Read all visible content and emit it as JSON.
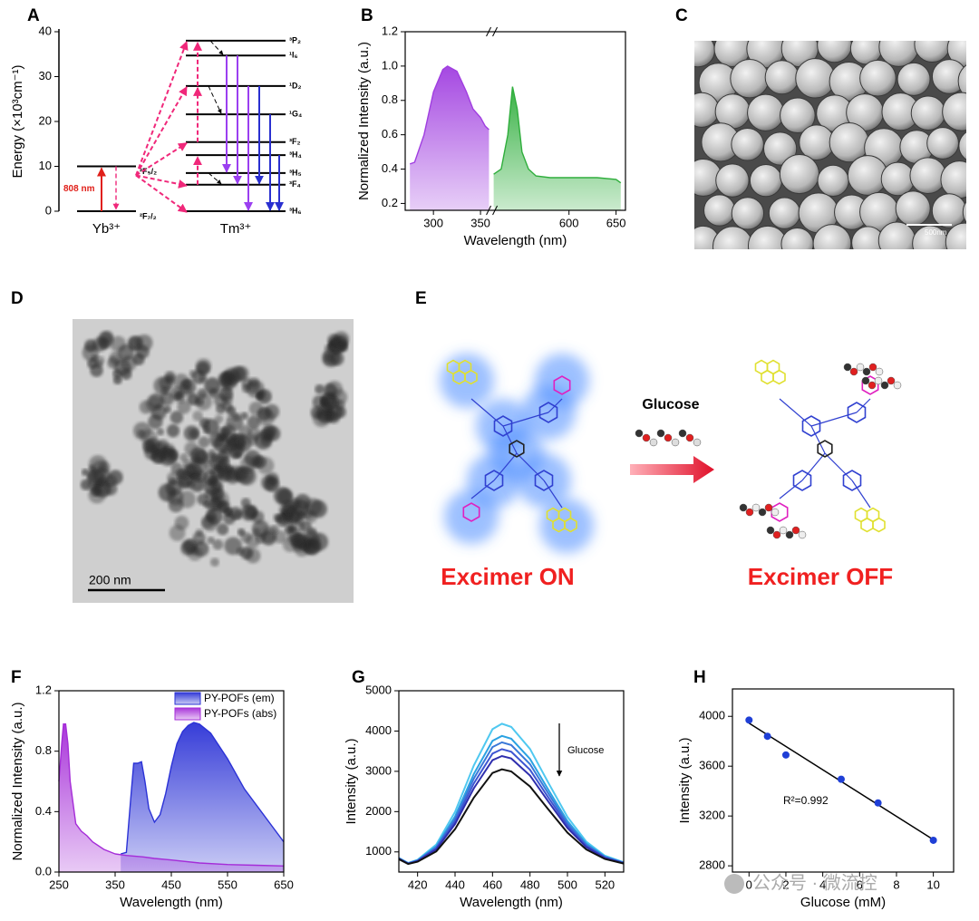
{
  "chart_data": [
    {
      "type": "energy-levels",
      "panel": "A",
      "ylabel": "Energy (×10³cm⁻¹)",
      "ylim": [
        0,
        40
      ],
      "yticks": [
        0,
        10,
        20,
        30,
        40
      ],
      "annotation": "808 nm",
      "groups": [
        {
          "name": "Yb³⁺",
          "levels": [
            {
              "label": "²F₇/₂",
              "energy": 0
            },
            {
              "label": "²F₅/₂",
              "energy": 10
            }
          ]
        },
        {
          "name": "Tm³⁺",
          "levels": [
            {
              "label": "³H₆",
              "energy": 0
            },
            {
              "label": "³F₄",
              "energy": 5.9
            },
            {
              "label": "³H₅",
              "energy": 8.5
            },
            {
              "label": "³H₄",
              "energy": 12.5
            },
            {
              "label": "³F₂",
              "energy": 15.4
            },
            {
              "label": "¹G₄",
              "energy": 21.6
            },
            {
              "label": "¹D₂",
              "energy": 27.9
            },
            {
              "label": "¹I₆",
              "energy": 34.7
            },
            {
              "label": "³P₂",
              "energy": 38
            }
          ]
        }
      ]
    },
    {
      "type": "area",
      "panel": "B",
      "ylabel": "Normalized Intensity (a.u.)",
      "xlabel": "Wavelength (nm)",
      "xlim": [
        270,
        660
      ],
      "xbreak": [
        362,
        518
      ],
      "xticks": [
        300,
        350,
        600,
        650
      ],
      "ylim": [
        0.16,
        1.2
      ],
      "yticks": [
        0.2,
        0.4,
        0.6,
        0.8,
        {
          "value": 1,
          "label": "1.0"
        },
        1.2
      ],
      "series": [
        {
          "color": "#a03ee0",
          "x": [
            275,
            280,
            290,
            300,
            310,
            315,
            325,
            335,
            342,
            350,
            355,
            359
          ],
          "values": [
            0.43,
            0.44,
            0.6,
            0.85,
            0.98,
            1.0,
            0.97,
            0.85,
            0.75,
            0.7,
            0.65,
            0.63
          ]
        },
        {
          "color": "#2fae3c",
          "x": [
            520,
            528,
            535,
            540,
            545,
            550,
            557,
            565,
            580,
            600,
            630,
            650,
            655
          ],
          "values": [
            0.37,
            0.4,
            0.6,
            0.88,
            0.75,
            0.5,
            0.4,
            0.36,
            0.35,
            0.35,
            0.35,
            0.34,
            0.32
          ]
        }
      ]
    },
    {
      "type": "area",
      "panel": "F",
      "ylabel": "Normalized Intensity (a.u.)",
      "xlabel": "Wavelength (nm)",
      "legend": "upper right",
      "xlim": [
        250,
        650
      ],
      "xticks": [
        250,
        350,
        450,
        550,
        650
      ],
      "ylim": [
        0,
        1.2
      ],
      "yticks": [
        {
          "value": 0,
          "label": "0.0"
        },
        0.4,
        0.8,
        1.2
      ],
      "series": [
        {
          "name": "PY-POFs (em)",
          "color": "#2b32d6",
          "x": [
            360,
            370,
            378,
            383,
            390,
            397,
            403,
            410,
            420,
            430,
            440,
            450,
            460,
            470,
            480,
            490,
            500,
            520,
            550,
            580,
            610,
            630,
            650
          ],
          "values": [
            0.12,
            0.13,
            0.5,
            0.72,
            0.72,
            0.73,
            0.6,
            0.42,
            0.33,
            0.38,
            0.52,
            0.7,
            0.85,
            0.93,
            0.97,
            0.99,
            0.98,
            0.92,
            0.75,
            0.55,
            0.4,
            0.3,
            0.2
          ]
        },
        {
          "name": "PY-POFs (abs)",
          "color": "#a52cd8",
          "x": [
            250,
            255,
            258,
            262,
            266,
            270,
            280,
            290,
            300,
            310,
            330,
            350,
            370,
            400,
            420,
            450,
            500,
            550,
            600,
            650
          ],
          "values": [
            0.6,
            0.85,
            0.98,
            0.98,
            0.85,
            0.6,
            0.32,
            0.27,
            0.24,
            0.2,
            0.15,
            0.12,
            0.11,
            0.1,
            0.09,
            0.08,
            0.06,
            0.05,
            0.045,
            0.04
          ]
        }
      ]
    },
    {
      "type": "line",
      "panel": "G",
      "ylabel": "Intensity (a.u.)",
      "xlabel": "Wavelength (nm)",
      "annotation": "Glucose",
      "xlim": [
        410,
        530
      ],
      "xticks": [
        420,
        440,
        460,
        480,
        500,
        520
      ],
      "ylim": [
        500,
        5000
      ],
      "yticks": [
        1000,
        2000,
        3000,
        4000,
        5000
      ],
      "x": [
        410,
        415,
        420,
        430,
        440,
        450,
        460,
        465,
        470,
        480,
        490,
        500,
        510,
        520,
        530
      ],
      "series": [
        {
          "color": "#4fc8f0",
          "values": [
            850,
            724,
            805,
            1183,
            1995,
            3146,
            4046,
            4180,
            4102,
            3555,
            2701,
            1868,
            1257,
            904,
            742
          ]
        },
        {
          "color": "#2aa2e2",
          "values": [
            845,
            718,
            792,
            1138,
            1881,
            2934,
            3757,
            3880,
            3809,
            3308,
            2527,
            1764,
            1206,
            883,
            734
          ]
        },
        {
          "color": "#3a78d8",
          "values": [
            840,
            714,
            785,
            1114,
            1820,
            2820,
            3603,
            3720,
            3652,
            3177,
            2434,
            1709,
            1178,
            871,
            730
          ]
        },
        {
          "color": "#3d55d2",
          "values": [
            835,
            711,
            778,
            1088,
            1755,
            2700,
            3440,
            3550,
            3486,
            3037,
            2335,
            1651,
            1149,
            859,
            725
          ]
        },
        {
          "color": "#2f2fae",
          "values": [
            830,
            707,
            770,
            1062,
            1690,
            2580,
            3276,
            3380,
            3320,
            2897,
            2236,
            1592,
            1120,
            847,
            721
          ]
        },
        {
          "color": "#111111",
          "values": [
            820,
            700,
            756,
            1012,
            1564,
            2347,
            2959,
            3050,
            2997,
            2625,
            2044,
            1478,
            1063,
            823,
            712
          ]
        }
      ]
    },
    {
      "type": "scatter",
      "panel": "H",
      "ylabel": "Intensity (a.u.)",
      "xlabel": "Glucose (mM)",
      "annotation": "R²=0.992",
      "color": "#1f3fd6",
      "xlim": [
        -0.9,
        11.1
      ],
      "xticks": [
        0,
        2,
        4,
        6,
        8,
        10
      ],
      "ylim": [
        2750,
        4220
      ],
      "yticks": [
        2800,
        3200,
        3600,
        4000
      ],
      "x": [
        0,
        1,
        2,
        5,
        7,
        10
      ],
      "values": [
        3970,
        3840,
        3690,
        3495,
        3305,
        3005
      ],
      "fit": {
        "x": [
          0,
          10
        ],
        "y": [
          3945,
          3010
        ]
      }
    }
  ],
  "images": [
    {
      "panel": "C",
      "scale_bar": "500nm"
    },
    {
      "panel": "D",
      "scale_bar": "200 nm"
    }
  ],
  "diagram": {
    "panel": "E",
    "arrow_label": "Glucose",
    "left_label": "Excimer ON",
    "right_label": "Excimer OFF"
  },
  "watermark": "公众号 · 微流控"
}
